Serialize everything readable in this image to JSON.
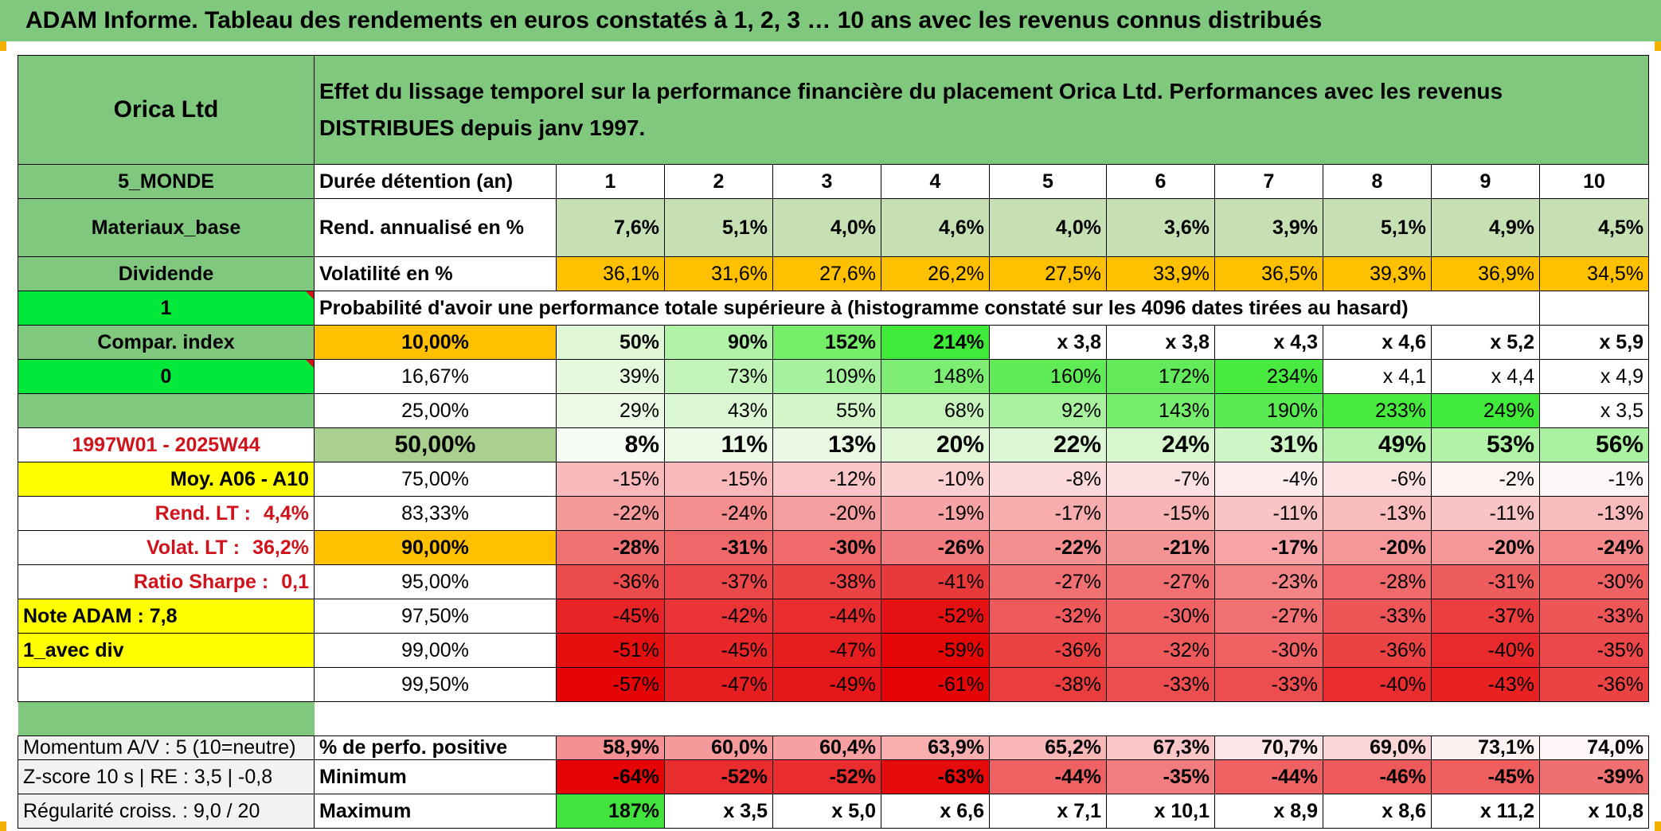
{
  "page": {
    "title": "ADAM Informe. Tableau des rendements en euros constatés à 1, 2, 3 … 10 ans avec les revenus connus distribués"
  },
  "header": {
    "company": "Orica Ltd",
    "description": "Effet du lissage temporel sur la performance financière du placement Orica Ltd. Performances avec les revenus DISTRIBUES depuis janv 1997."
  },
  "sidebar": {
    "region": "5_MONDE",
    "sector": "Materiaux_base",
    "type": "Dividende",
    "flag1": "1",
    "compar_index": "Compar. index",
    "flag0": "0",
    "blank": "",
    "period": "1997W01 - 2025W44",
    "moy": "Moy. A06 - A10",
    "rend_lt_label": "Rend. LT :",
    "rend_lt_value": "4,4%",
    "volat_lt_label": "Volat. LT :",
    "volat_lt_value": "36,2%",
    "sharpe_label": "Ratio Sharpe :",
    "sharpe_value": "0,1",
    "note": "Note ADAM : 7,8",
    "div": "1_avec div",
    "momentum": "Momentum A/V : 5 (10=neutre)",
    "zscore": "Z-score 10 s | RE : 3,5 | -0,8",
    "regularite": "Régularité croiss. : 9,0 / 20"
  },
  "table": {
    "duree_label": "Durée détention (an)",
    "years": [
      "1",
      "2",
      "3",
      "4",
      "5",
      "6",
      "7",
      "8",
      "9",
      "10"
    ],
    "rend_label": "Rend. annualisé en %",
    "rend": [
      "7,6%",
      "5,1%",
      "4,0%",
      "4,6%",
      "4,0%",
      "3,6%",
      "3,9%",
      "5,1%",
      "4,9%",
      "4,5%"
    ],
    "vol_label": "Volatilité en %",
    "vol": [
      "36,1%",
      "31,6%",
      "27,6%",
      "26,2%",
      "27,5%",
      "33,9%",
      "36,5%",
      "39,3%",
      "36,9%",
      "34,5%"
    ],
    "proba_label": "Probabilité d'avoir une performance totale supérieure à (histogramme constaté sur les 4096 dates tirées au hasard)",
    "quantile_rows": [
      {
        "p": "10,00%",
        "vals": [
          "50%",
          "90%",
          "152%",
          "214%",
          "x 3,8",
          "x 3,8",
          "x 4,3",
          "x 4,6",
          "x 5,2",
          "x 5,9"
        ]
      },
      {
        "p": "16,67%",
        "vals": [
          "39%",
          "73%",
          "109%",
          "148%",
          "160%",
          "172%",
          "234%",
          "x 4,1",
          "x 4,4",
          "x 4,9"
        ]
      },
      {
        "p": "25,00%",
        "vals": [
          "29%",
          "43%",
          "55%",
          "68%",
          "92%",
          "143%",
          "190%",
          "233%",
          "249%",
          "x 3,5"
        ]
      },
      {
        "p": "50,00%",
        "vals": [
          "8%",
          "11%",
          "13%",
          "20%",
          "22%",
          "24%",
          "31%",
          "49%",
          "53%",
          "56%"
        ]
      },
      {
        "p": "75,00%",
        "vals": [
          "-15%",
          "-15%",
          "-12%",
          "-10%",
          "-8%",
          "-7%",
          "-4%",
          "-6%",
          "-2%",
          "-1%"
        ]
      },
      {
        "p": "83,33%",
        "vals": [
          "-22%",
          "-24%",
          "-20%",
          "-19%",
          "-17%",
          "-15%",
          "-11%",
          "-13%",
          "-11%",
          "-13%"
        ]
      },
      {
        "p": "90,00%",
        "vals": [
          "-28%",
          "-31%",
          "-30%",
          "-26%",
          "-22%",
          "-21%",
          "-17%",
          "-20%",
          "-20%",
          "-24%"
        ]
      },
      {
        "p": "95,00%",
        "vals": [
          "-36%",
          "-37%",
          "-38%",
          "-41%",
          "-27%",
          "-27%",
          "-23%",
          "-28%",
          "-31%",
          "-30%"
        ]
      },
      {
        "p": "97,50%",
        "vals": [
          "-45%",
          "-42%",
          "-44%",
          "-52%",
          "-32%",
          "-30%",
          "-27%",
          "-33%",
          "-37%",
          "-33%"
        ]
      },
      {
        "p": "99,00%",
        "vals": [
          "-51%",
          "-45%",
          "-47%",
          "-59%",
          "-36%",
          "-32%",
          "-30%",
          "-36%",
          "-40%",
          "-35%"
        ]
      },
      {
        "p": "99,50%",
        "vals": [
          "-57%",
          "-47%",
          "-49%",
          "-61%",
          "-38%",
          "-33%",
          "-33%",
          "-40%",
          "-43%",
          "-36%"
        ]
      }
    ],
    "positive_label": "% de perfo. positive",
    "positive": [
      "58,9%",
      "60,0%",
      "60,4%",
      "63,9%",
      "65,2%",
      "67,3%",
      "70,7%",
      "69,0%",
      "73,1%",
      "74,0%"
    ],
    "min_label": "Minimum",
    "min": [
      "-64%",
      "-52%",
      "-52%",
      "-63%",
      "-44%",
      "-35%",
      "-44%",
      "-46%",
      "-45%",
      "-39%"
    ],
    "max_label": "Maximum",
    "max": [
      "187%",
      "x 3,5",
      "x 5,0",
      "x 6,6",
      "x 7,1",
      "x 10,1",
      "x 8,9",
      "x 8,6",
      "x 11,2",
      "x 10,8"
    ]
  },
  "colors": {
    "header_green": "#80C87E",
    "light_green": "#C6E0B4",
    "orange": "#FFC000",
    "bright_green": "#00E83A",
    "yellow": "#FFFF00",
    "red_text": "#D0121B"
  }
}
